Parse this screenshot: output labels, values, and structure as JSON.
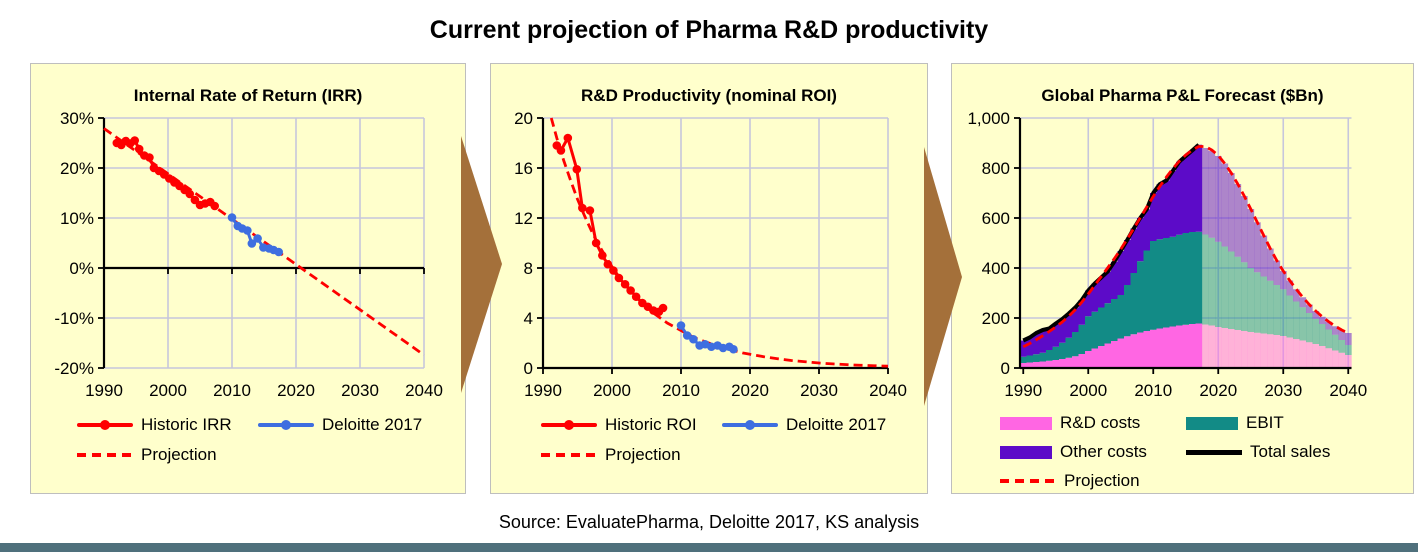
{
  "page": {
    "title": "Current projection of Pharma R&D productivity",
    "source": "Source: EvaluatePharma, Deloitte 2017, KS analysis"
  },
  "colors": {
    "panel_bg": "#FFFFCC",
    "grid": "#C6C6DC",
    "axis": "#000000",
    "red": "#FE0000",
    "blue": "#3E6EE0",
    "pink": "#FF66E3",
    "teal": "#128B86",
    "purple": "#5C0BC8",
    "black": "#000000",
    "arrow": "#A4703A",
    "footer_bar": "#4F707C"
  },
  "chart_data": [
    {
      "type": "scatter",
      "title": "Internal Rate of Return (IRR)",
      "x_ticks": [
        "1990",
        "2000",
        "2010",
        "2020",
        "2030",
        "2040"
      ],
      "x_tick_values": [
        1990,
        2000,
        2010,
        2020,
        2030,
        2040
      ],
      "y_ticks": [
        "30%",
        "20%",
        "10%",
        "0%",
        "-10%",
        "-20%"
      ],
      "y_tick_values": [
        30,
        20,
        10,
        0,
        -10,
        -20
      ],
      "xlim": [
        1990,
        2040
      ],
      "ylim": [
        -20,
        30
      ],
      "zero_line": 0,
      "grid": true,
      "legend": [
        {
          "label": "Historic IRR"
        },
        {
          "label": "Deloitte 2017"
        },
        {
          "label": "Projection"
        }
      ],
      "series": {
        "historic": {
          "name": "Historic IRR",
          "points": [
            [
              1992,
              25.0
            ],
            [
              1992.7,
              24.6
            ],
            [
              1993.4,
              25.4
            ],
            [
              1994.1,
              24.9
            ],
            [
              1994.8,
              25.5
            ],
            [
              1995.5,
              23.8
            ],
            [
              1996.3,
              22.5
            ],
            [
              1997.1,
              22.1
            ],
            [
              1997.8,
              20.0
            ],
            [
              1998.6,
              19.4
            ],
            [
              1999.4,
              18.7
            ],
            [
              2000.2,
              17.9
            ],
            [
              2001,
              17.1
            ],
            [
              2001.8,
              16.4
            ],
            [
              2002.6,
              15.6
            ],
            [
              2003.4,
              14.8
            ],
            [
              2004.2,
              13.6
            ],
            [
              2005,
              12.6
            ],
            [
              2005.8,
              12.9
            ],
            [
              2006.6,
              13.2
            ],
            [
              2007.3,
              12.4
            ]
          ]
        },
        "deloitte": {
          "name": "Deloitte 2017",
          "points": [
            [
              2010,
              10.1
            ],
            [
              2010.9,
              8.4
            ],
            [
              2011.6,
              7.9
            ],
            [
              2012.4,
              7.5
            ],
            [
              2013.1,
              4.9
            ],
            [
              2014,
              5.9
            ],
            [
              2014.9,
              4.1
            ],
            [
              2015.8,
              3.9
            ],
            [
              2016.5,
              3.6
            ],
            [
              2017.3,
              3.2
            ]
          ]
        },
        "projection": {
          "name": "Projection",
          "points": [
            [
              1990,
              27.9
            ],
            [
              2040,
              -17.4
            ]
          ]
        }
      }
    },
    {
      "type": "scatter",
      "title": "R&D Productivity (nominal ROI)",
      "x_ticks": [
        "1990",
        "2000",
        "2010",
        "2020",
        "2030",
        "2040"
      ],
      "x_tick_values": [
        1990,
        2000,
        2010,
        2020,
        2030,
        2040
      ],
      "y_ticks": [
        "20",
        "16",
        "12",
        "8",
        "4",
        "0"
      ],
      "y_tick_values": [
        20,
        16,
        12,
        8,
        4,
        0
      ],
      "xlim": [
        1990,
        2040
      ],
      "ylim": [
        0,
        20
      ],
      "zero_line": 0,
      "grid": true,
      "legend": [
        {
          "label": "Historic ROI"
        },
        {
          "label": "Deloitte 2017"
        },
        {
          "label": "Projection"
        }
      ],
      "series": {
        "historic": {
          "name": "Historic ROI",
          "points": [
            [
              1992,
              17.8
            ],
            [
              1992.6,
              17.4
            ],
            [
              1993.6,
              18.4
            ],
            [
              1994.9,
              15.9
            ],
            [
              1995.7,
              12.8
            ],
            [
              1996.8,
              12.6
            ],
            [
              1997.7,
              10.0
            ],
            [
              1998.6,
              9.0
            ],
            [
              1999.4,
              8.3
            ],
            [
              2000.2,
              7.8
            ],
            [
              2001,
              7.2
            ],
            [
              2001.9,
              6.7
            ],
            [
              2002.7,
              6.2
            ],
            [
              2003.5,
              5.7
            ],
            [
              2004.4,
              5.2
            ],
            [
              2005.2,
              4.9
            ],
            [
              2006,
              4.6
            ],
            [
              2006.8,
              4.5
            ],
            [
              2007.4,
              4.8
            ]
          ]
        },
        "deloitte": {
          "name": "Deloitte 2017",
          "points": [
            [
              2010,
              3.4
            ],
            [
              2010.9,
              2.6
            ],
            [
              2011.8,
              2.3
            ],
            [
              2012.7,
              1.8
            ],
            [
              2013.5,
              1.9
            ],
            [
              2014.4,
              1.7
            ],
            [
              2015.3,
              1.8
            ],
            [
              2016.1,
              1.6
            ],
            [
              2017,
              1.7
            ],
            [
              2017.6,
              1.5
            ]
          ]
        },
        "projection": {
          "name": "Projection",
          "points": [
            [
              1991.2,
              20
            ],
            [
              1992,
              18.4
            ],
            [
              1993,
              16.6
            ],
            [
              1994,
              15.0
            ],
            [
              1995,
              13.5
            ],
            [
              1996,
              12.2
            ],
            [
              1997,
              11.0
            ],
            [
              1998,
              9.9
            ],
            [
              1999,
              9.0
            ],
            [
              2000,
              8.1
            ],
            [
              2001,
              7.3
            ],
            [
              2002,
              6.6
            ],
            [
              2003,
              6.0
            ],
            [
              2004,
              5.4
            ],
            [
              2005,
              4.9
            ],
            [
              2006,
              4.4
            ],
            [
              2007,
              4.0
            ],
            [
              2008,
              3.6
            ],
            [
              2009,
              3.3
            ],
            [
              2010,
              3.0
            ],
            [
              2011,
              2.7
            ],
            [
              2012,
              2.4
            ],
            [
              2013,
              2.2
            ],
            [
              2014,
              2.0
            ],
            [
              2015,
              1.8
            ],
            [
              2016,
              1.6
            ],
            [
              2017,
              1.5
            ],
            [
              2018,
              1.35
            ],
            [
              2019,
              1.2
            ],
            [
              2020,
              1.1
            ],
            [
              2021,
              1.0
            ],
            [
              2022,
              0.9
            ],
            [
              2023,
              0.82
            ],
            [
              2024,
              0.74
            ],
            [
              2025,
              0.67
            ],
            [
              2026,
              0.6
            ],
            [
              2027,
              0.55
            ],
            [
              2028,
              0.5
            ],
            [
              2029,
              0.45
            ],
            [
              2030,
              0.4
            ],
            [
              2031,
              0.36
            ],
            [
              2032,
              0.33
            ],
            [
              2033,
              0.3
            ],
            [
              2034,
              0.27
            ],
            [
              2035,
              0.24
            ],
            [
              2036,
              0.22
            ],
            [
              2037,
              0.2
            ],
            [
              2038,
              0.18
            ],
            [
              2039,
              0.16
            ],
            [
              2040,
              0.15
            ]
          ]
        }
      }
    },
    {
      "type": "stacked-bar",
      "title": "Global Pharma P&L Forecast ($Bn)",
      "x_ticks": [
        "1990",
        "2000",
        "2010",
        "2020",
        "2030",
        "2040"
      ],
      "x_tick_values": [
        1990,
        2000,
        2010,
        2020,
        2030,
        2040
      ],
      "y_ticks": [
        "1,000",
        "800",
        "600",
        "400",
        "200",
        "0"
      ],
      "y_tick_values": [
        1000,
        800,
        600,
        400,
        200,
        0
      ],
      "ylim": [
        0,
        1000
      ],
      "year_start": 1990,
      "year_end": 2040,
      "forecast_from": 2018,
      "legend": [
        {
          "label": "R&D costs"
        },
        {
          "label": "EBIT"
        },
        {
          "label": "Other costs"
        },
        {
          "label": "Total sales"
        },
        {
          "label": "Projection"
        }
      ],
      "series": {
        "rd_costs": {
          "name": "R&D costs",
          "values": [
            20,
            22,
            24,
            26,
            29,
            32,
            36,
            41,
            47,
            56,
            68,
            78,
            88,
            98,
            108,
            118,
            127,
            135,
            142,
            148,
            153,
            158,
            162,
            166,
            170,
            173,
            176,
            178,
            174,
            170,
            164,
            160,
            156,
            152,
            148,
            144,
            141,
            138,
            135,
            132,
            128,
            122,
            116,
            110,
            103,
            96,
            88,
            79,
            70,
            61,
            52
          ]
        },
        "ebit": {
          "name": "EBIT",
          "values": [
            25,
            28,
            31,
            35,
            43,
            53,
            65,
            80,
            97,
            117,
            139,
            147,
            154,
            161,
            168,
            174,
            205,
            245,
            285,
            322,
            355,
            357,
            358,
            359,
            363,
            367,
            368,
            367,
            360,
            351,
            341,
            326,
            310,
            293,
            275,
            256,
            242,
            228,
            214,
            200,
            187,
            168,
            150,
            133,
            117,
            101,
            88,
            75,
            63,
            51,
            40
          ]
        },
        "other_costs": {
          "name": "Other costs",
          "values": [
            65,
            72,
            85,
            91,
            86,
            93,
            95,
            97,
            98,
            99,
            103,
            113,
            120,
            127,
            149,
            176,
            180,
            178,
            173,
            165,
            192,
            220,
            230,
            263,
            292,
            308,
            326,
            348,
            346,
            347,
            343,
            332,
            314,
            291,
            265,
            236,
            200,
            164,
            129,
            98,
            73,
            60,
            49,
            40,
            34,
            31,
            29,
            31,
            34,
            40,
            48
          ]
        },
        "projection": {
          "name": "Projection",
          "values": [
            85,
            98,
            113,
            129,
            146,
            164,
            184,
            207,
            233,
            263,
            296,
            331,
            366,
            401,
            437,
            475,
            516,
            558,
            601,
            644,
            686,
            726,
            763,
            797,
            827,
            852,
            872,
            886,
            886,
            872,
            850,
            818,
            780,
            736,
            688,
            636,
            583,
            530,
            478,
            430,
            388,
            350,
            315,
            283,
            254,
            228,
            205,
            185,
            167,
            152,
            140
          ]
        },
        "total_sales": {
          "name": "Total sales",
          "note": "black line = sum of stacked bands through 2017"
        }
      }
    }
  ]
}
